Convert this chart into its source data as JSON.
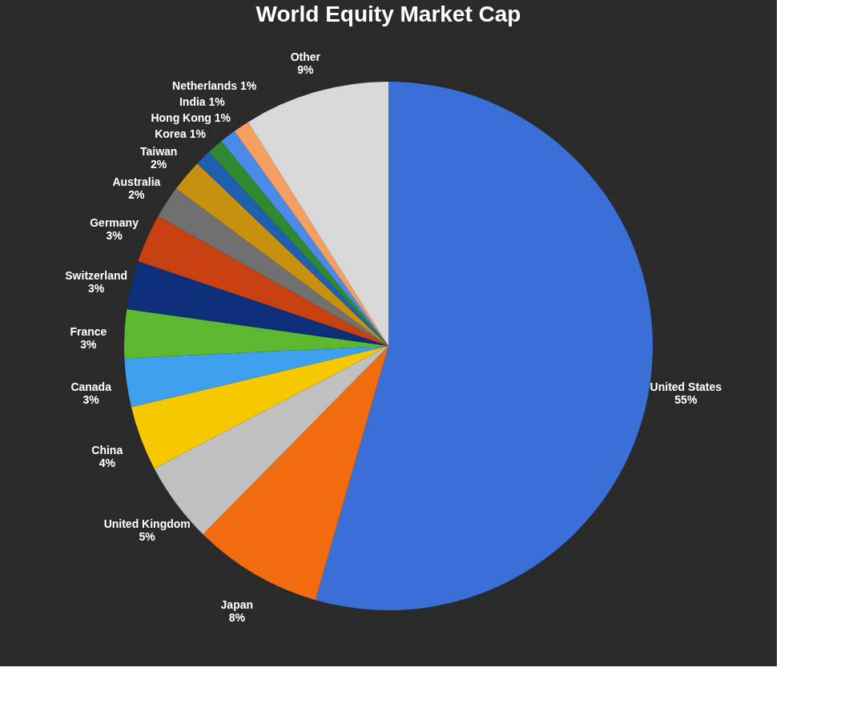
{
  "chart_data": {
    "type": "pie",
    "title": "World Equity Market Cap",
    "categories": [
      "United States",
      "Japan",
      "United Kingdom",
      "China",
      "Canada",
      "France",
      "Switzerland",
      "Germany",
      "Australia",
      "Taiwan",
      "Korea",
      "Hong Kong",
      "India",
      "Netherlands",
      "Other"
    ],
    "values": [
      55,
      8,
      5,
      4,
      3,
      3,
      3,
      3,
      2,
      2,
      1,
      1,
      1,
      1,
      9
    ],
    "value_labels": [
      "55%",
      "8%",
      "5%",
      "4%",
      "3%",
      "3%",
      "3%",
      "3%",
      "2%",
      "2%",
      "1%",
      "1%",
      "1%",
      "1%",
      "9%"
    ],
    "colors": [
      "#3a6fd8",
      "#f26b0f",
      "#c0c0c0",
      "#f5c800",
      "#3fa0f0",
      "#5cb82e",
      "#0d2f7a",
      "#c8400f",
      "#707070",
      "#c8900f",
      "#1f5fb0",
      "#2f8a2f",
      "#4a8ae8",
      "#f5a060",
      "#d8d8d8"
    ],
    "legend": false
  }
}
